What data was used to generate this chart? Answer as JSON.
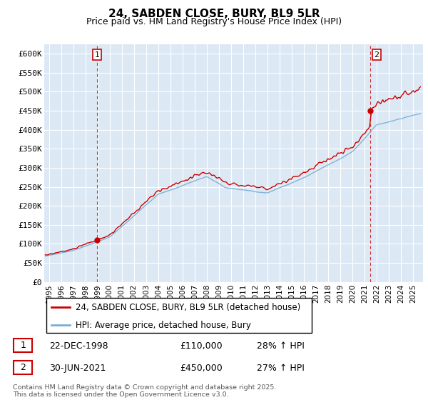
{
  "title": "24, SABDEN CLOSE, BURY, BL9 5LR",
  "subtitle": "Price paid vs. HM Land Registry's House Price Index (HPI)",
  "ylim": [
    0,
    625000
  ],
  "yticks": [
    0,
    50000,
    100000,
    150000,
    200000,
    250000,
    300000,
    350000,
    400000,
    450000,
    500000,
    550000,
    600000
  ],
  "ytick_labels": [
    "£0",
    "£50K",
    "£100K",
    "£150K",
    "£200K",
    "£250K",
    "£300K",
    "£350K",
    "£400K",
    "£450K",
    "£500K",
    "£550K",
    "£600K"
  ],
  "xlim_start": 1994.6,
  "xlim_end": 2025.8,
  "xlabel_years": [
    "1995",
    "1996",
    "1997",
    "1998",
    "1999",
    "2000",
    "2001",
    "2002",
    "2003",
    "2004",
    "2005",
    "2006",
    "2007",
    "2008",
    "2009",
    "2010",
    "2011",
    "2012",
    "2013",
    "2014",
    "2015",
    "2016",
    "2017",
    "2018",
    "2019",
    "2020",
    "2021",
    "2022",
    "2023",
    "2024",
    "2025"
  ],
  "purchase_dates": [
    1998.97,
    2021.49
  ],
  "purchase_prices": [
    110000,
    450000
  ],
  "sale_color": "#cc0000",
  "hpi_color": "#7aadd4",
  "vline_color": "#cc0000",
  "chart_bg": "#dce9f5",
  "legend_entries": [
    "24, SABDEN CLOSE, BURY, BL9 5LR (detached house)",
    "HPI: Average price, detached house, Bury"
  ],
  "annotation_rows": [
    {
      "label": "1",
      "date": "22-DEC-1998",
      "price": "£110,000",
      "hpi": "28% ↑ HPI"
    },
    {
      "label": "2",
      "date": "30-JUN-2021",
      "price": "£450,000",
      "hpi": "27% ↑ HPI"
    }
  ],
  "footer": "Contains HM Land Registry data © Crown copyright and database right 2025.\nThis data is licensed under the Open Government Licence v3.0.",
  "background_color": "#ffffff",
  "grid_color": "#ffffff"
}
